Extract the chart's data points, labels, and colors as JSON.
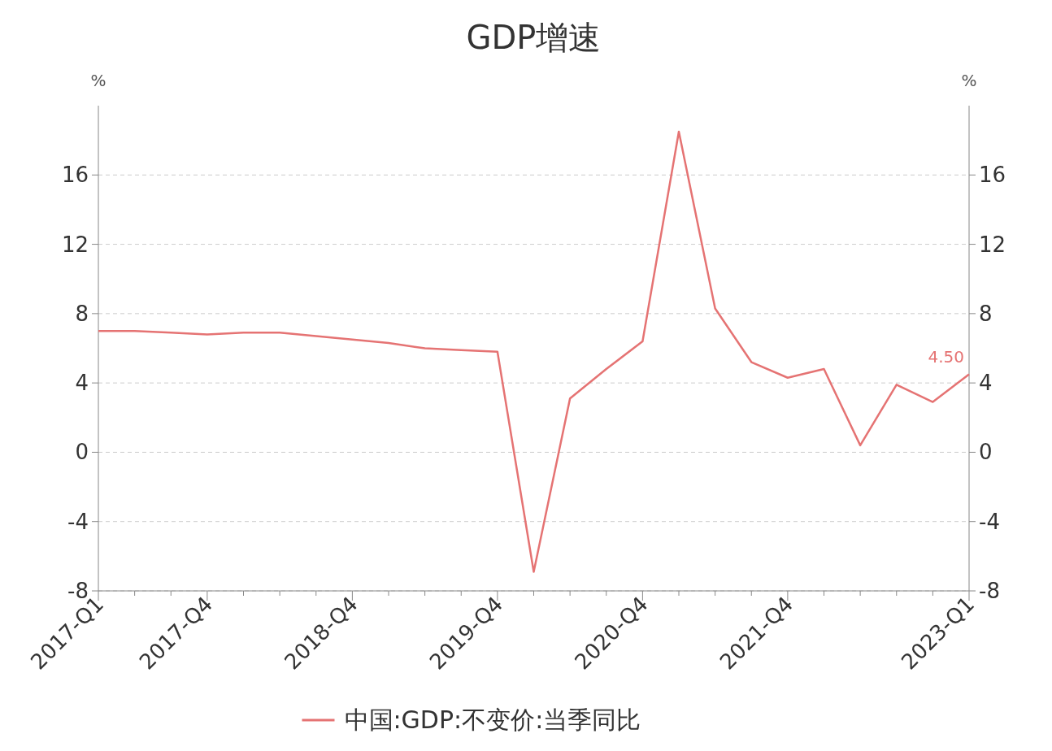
{
  "chart_data": {
    "type": "line",
    "title": "GDP增速",
    "ylabel": "%",
    "y2label": "%",
    "categories": [
      "2017-Q1",
      null,
      null,
      "2017-Q4",
      null,
      null,
      null,
      "2018-Q4",
      null,
      null,
      null,
      "2019-Q4",
      null,
      null,
      null,
      "2020-Q4",
      null,
      null,
      null,
      "2021-Q4",
      null,
      null,
      null,
      null,
      "2023-Q1"
    ],
    "series": [
      {
        "name": "中国:GDP:不变价:当季同比",
        "color": "#e57373",
        "values": [
          7.0,
          7.0,
          6.9,
          6.8,
          6.9,
          6.9,
          6.7,
          6.5,
          6.3,
          6.0,
          5.9,
          5.8,
          -6.9,
          3.1,
          4.8,
          6.4,
          18.5,
          8.3,
          5.2,
          4.3,
          4.8,
          0.4,
          3.9,
          2.9,
          4.5
        ],
        "value_labels": [
          null,
          null,
          null,
          null,
          null,
          null,
          null,
          null,
          null,
          null,
          null,
          null,
          null,
          null,
          null,
          null,
          null,
          null,
          null,
          null,
          null,
          null,
          null,
          null,
          "4.50"
        ]
      }
    ],
    "ylim": [
      -8,
      20
    ],
    "yticks": [
      -8,
      -4,
      0,
      4,
      8,
      12,
      16
    ],
    "y2lim": [
      -8,
      20
    ],
    "y2ticks": [
      -8,
      -4,
      0,
      4,
      8,
      12,
      16
    ],
    "grid": "y",
    "legend": "bottom",
    "marker": "none",
    "line_style": "solid"
  }
}
